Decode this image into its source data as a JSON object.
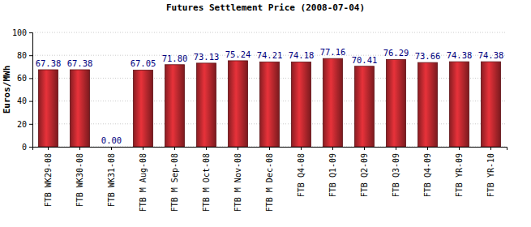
{
  "chart_data": {
    "type": "bar",
    "title": "Futures Settlement Price (2008-07-04)",
    "y_label": "Euros/MWh",
    "categories": [
      "FTB WK29-08",
      "FTB WK30-08",
      "FTB WK31-08",
      "FTB M Aug-08",
      "FTB M Sep-08",
      "FTB M Oct-08",
      "FTB M Nov-08",
      "FTB M Dec-08",
      "FTB Q4-08",
      "FTB Q1-09",
      "FTB Q2-09",
      "FTB Q3-09",
      "FTB Q4-09",
      "FTB YR-09",
      "FTB YR-10"
    ],
    "values": [
      67.38,
      67.38,
      0.0,
      67.05,
      71.8,
      73.13,
      75.24,
      74.21,
      74.18,
      77.16,
      70.41,
      76.29,
      73.66,
      74.38,
      74.38
    ],
    "value_labels": [
      "67.38",
      "67.38",
      "0.00",
      "67.05",
      "71.80",
      "73.13",
      "75.24",
      "74.21",
      "74.18",
      "77.16",
      "70.41",
      "76.29",
      "73.66",
      "74.38",
      "74.38"
    ],
    "color": "#a8242a",
    "ylim": [
      0,
      100
    ],
    "yticks": [
      0,
      20,
      40,
      60,
      80,
      100
    ],
    "grid": true,
    "data_labels": true
  }
}
